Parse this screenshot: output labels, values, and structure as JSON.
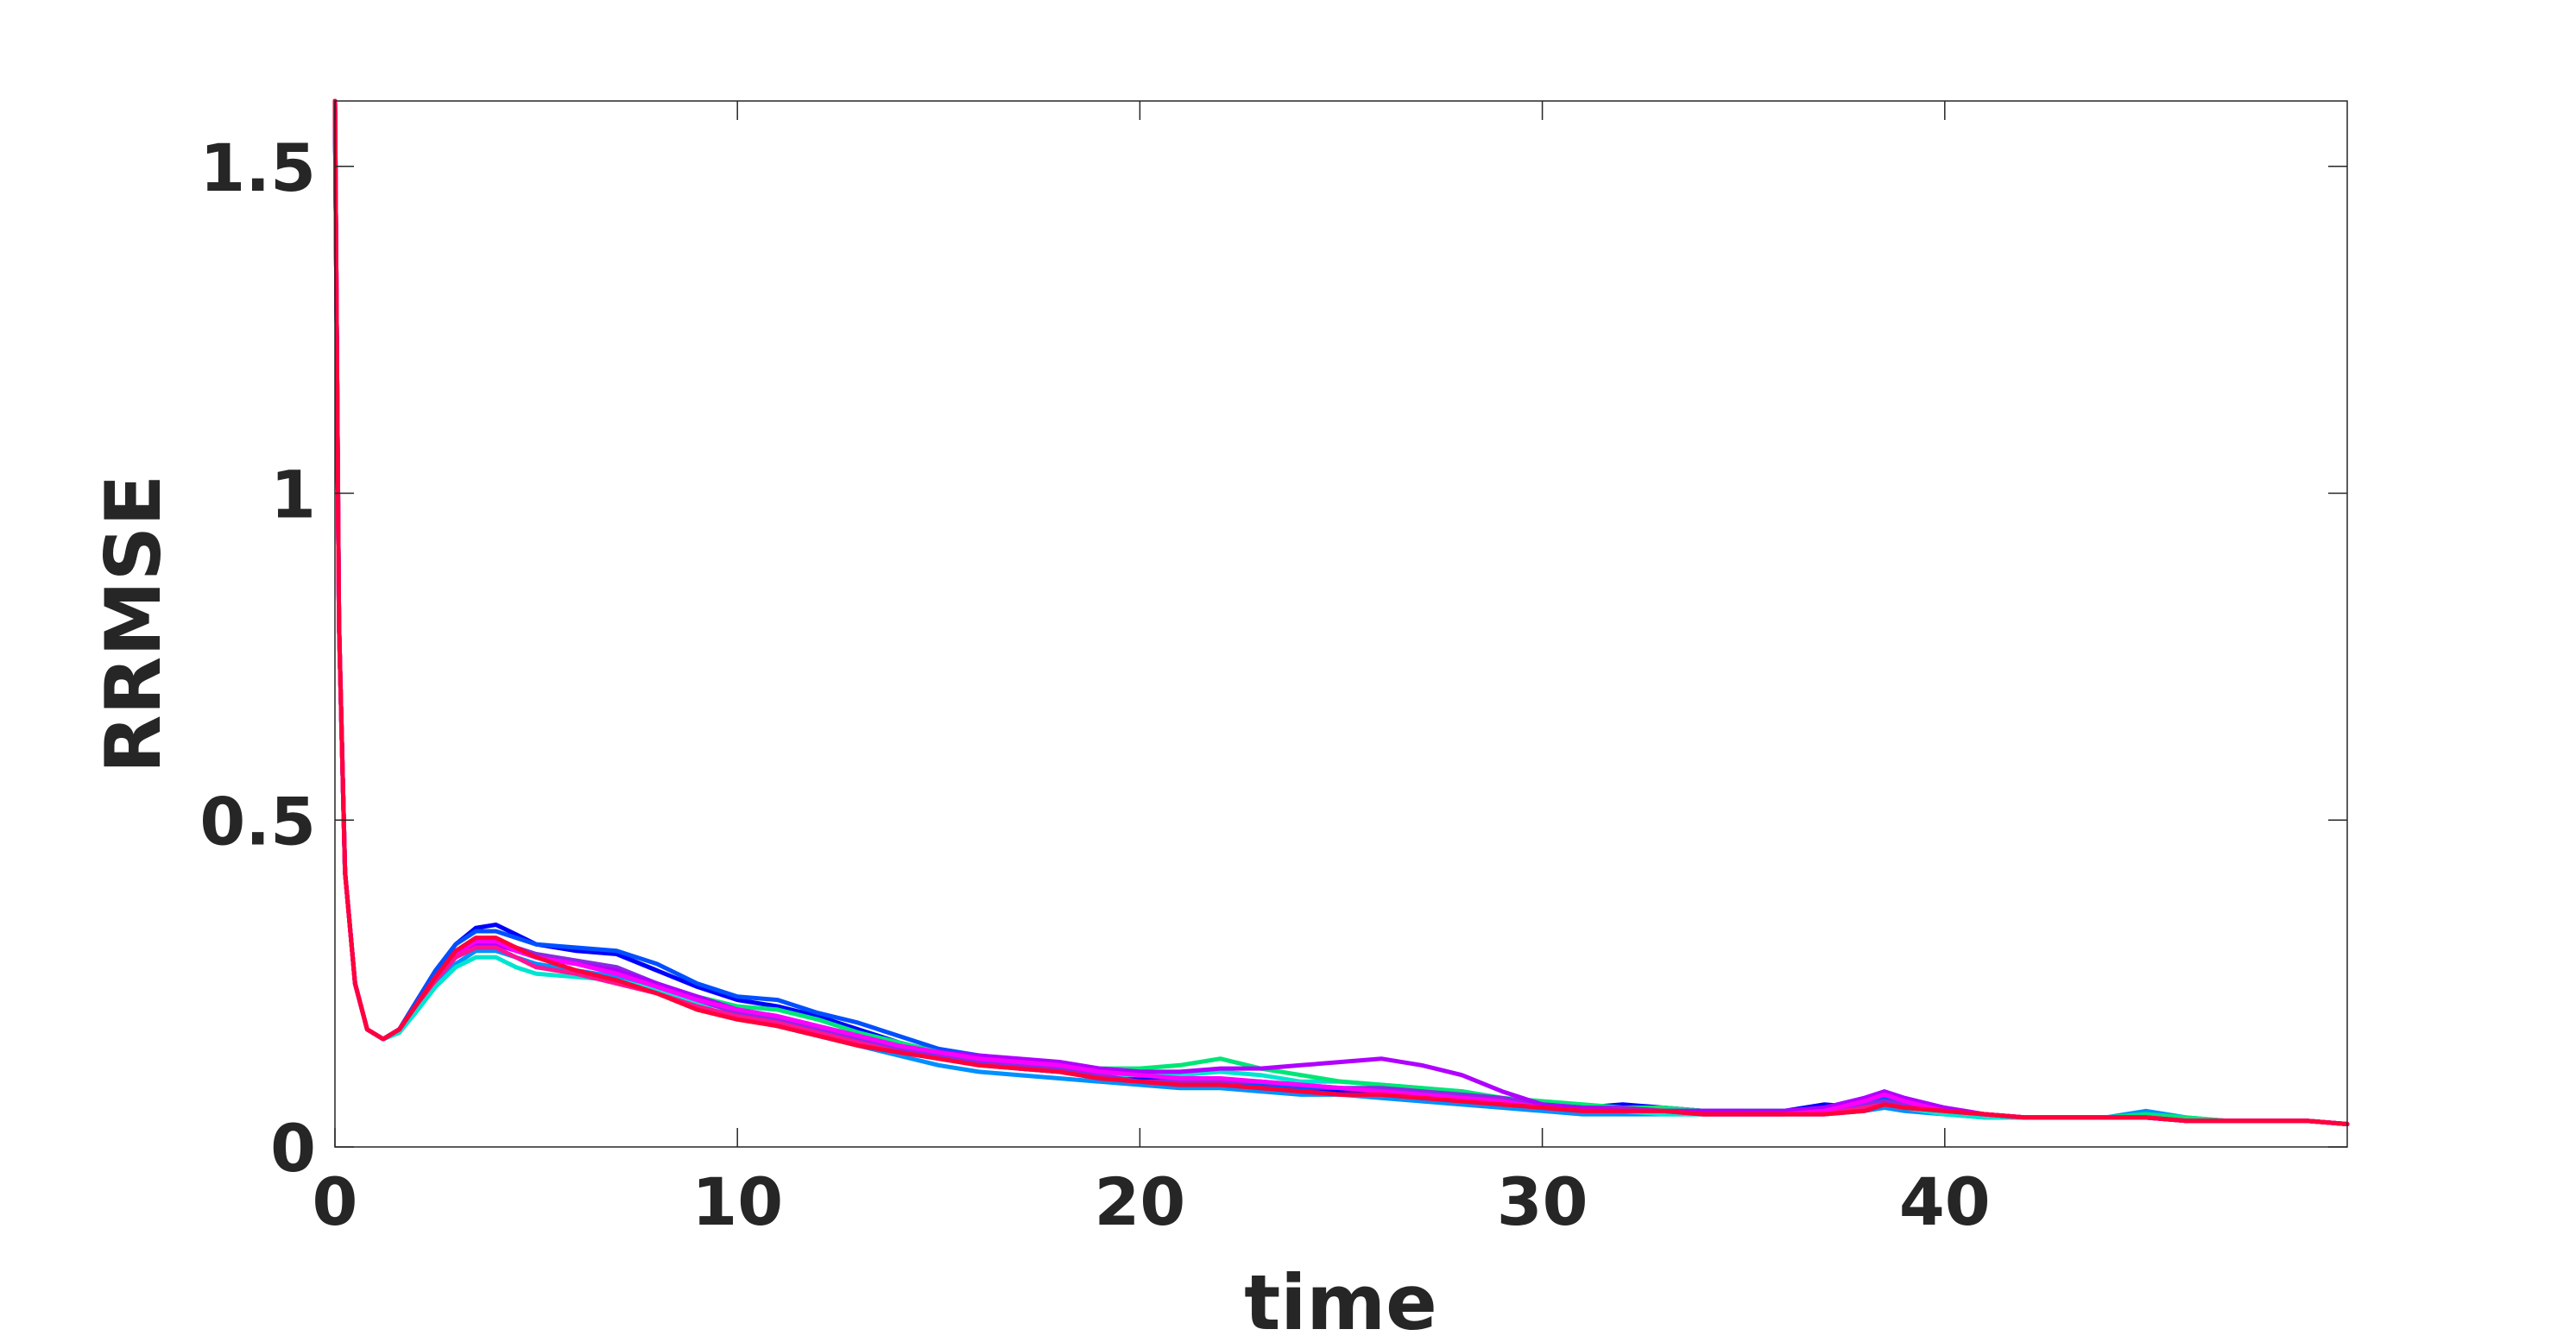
{
  "chart_data": {
    "type": "line",
    "xlabel": "time",
    "ylabel": "RRMSE",
    "xlim": [
      0,
      50
    ],
    "ylim": [
      0,
      1.6
    ],
    "xticks": [
      0,
      10,
      20,
      30,
      40
    ],
    "xtick_labels": [
      "0",
      "10",
      "20",
      "30",
      "40"
    ],
    "yticks": [
      0,
      0.5,
      1,
      1.5
    ],
    "ytick_labels": [
      "0",
      "0.5",
      "1",
      "1.5"
    ],
    "grid": false,
    "legend": "none",
    "x": [
      0,
      0.1,
      0.25,
      0.5,
      0.8,
      1.2,
      1.6,
      2,
      2.5,
      3,
      3.5,
      4,
      4.5,
      5,
      6,
      7,
      8,
      9,
      10,
      11,
      12,
      13,
      14,
      15,
      16,
      17,
      18,
      19,
      20,
      21,
      22,
      23,
      24,
      25,
      26,
      27,
      28,
      29,
      30,
      31,
      32,
      33,
      34,
      35,
      36,
      37,
      38,
      38.5,
      39,
      40,
      41,
      42,
      43,
      44,
      45,
      46,
      47,
      48,
      49,
      50
    ],
    "series": [
      {
        "color": "#0000ff",
        "values": [
          1.6,
          0.8,
          0.42,
          0.25,
          0.18,
          0.165,
          0.18,
          0.22,
          0.27,
          0.31,
          0.335,
          0.34,
          0.325,
          0.31,
          0.3,
          0.295,
          0.27,
          0.245,
          0.225,
          0.215,
          0.2,
          0.18,
          0.16,
          0.145,
          0.13,
          0.12,
          0.115,
          0.11,
          0.105,
          0.1,
          0.1,
          0.095,
          0.09,
          0.085,
          0.085,
          0.08,
          0.075,
          0.07,
          0.065,
          0.06,
          0.065,
          0.06,
          0.055,
          0.055,
          0.055,
          0.065,
          0.06,
          0.065,
          0.06,
          0.055,
          0.05,
          0.045,
          0.045,
          0.045,
          0.045,
          0.04,
          0.04,
          0.04,
          0.04,
          0.035
        ]
      },
      {
        "color": "#0050ff",
        "values": [
          1.6,
          0.8,
          0.42,
          0.25,
          0.18,
          0.165,
          0.18,
          0.22,
          0.27,
          0.31,
          0.33,
          0.33,
          0.32,
          0.31,
          0.305,
          0.3,
          0.28,
          0.25,
          0.23,
          0.225,
          0.205,
          0.19,
          0.17,
          0.15,
          0.14,
          0.13,
          0.12,
          0.115,
          0.11,
          0.105,
          0.1,
          0.095,
          0.09,
          0.09,
          0.085,
          0.08,
          0.075,
          0.07,
          0.065,
          0.06,
          0.06,
          0.06,
          0.055,
          0.055,
          0.055,
          0.06,
          0.07,
          0.075,
          0.065,
          0.055,
          0.05,
          0.045,
          0.045,
          0.045,
          0.05,
          0.04,
          0.04,
          0.04,
          0.04,
          0.035
        ]
      },
      {
        "color": "#0090ff",
        "values": [
          1.6,
          0.8,
          0.42,
          0.25,
          0.18,
          0.165,
          0.175,
          0.21,
          0.25,
          0.28,
          0.3,
          0.3,
          0.29,
          0.28,
          0.27,
          0.26,
          0.24,
          0.215,
          0.2,
          0.185,
          0.17,
          0.155,
          0.14,
          0.125,
          0.115,
          0.11,
          0.105,
          0.1,
          0.095,
          0.09,
          0.09,
          0.085,
          0.08,
          0.08,
          0.075,
          0.07,
          0.065,
          0.06,
          0.055,
          0.05,
          0.05,
          0.05,
          0.05,
          0.05,
          0.05,
          0.05,
          0.055,
          0.06,
          0.055,
          0.05,
          0.045,
          0.045,
          0.045,
          0.045,
          0.055,
          0.045,
          0.04,
          0.04,
          0.04,
          0.035
        ]
      },
      {
        "color": "#00e5d0",
        "values": [
          1.6,
          0.8,
          0.42,
          0.25,
          0.18,
          0.165,
          0.175,
          0.205,
          0.245,
          0.275,
          0.29,
          0.29,
          0.275,
          0.265,
          0.26,
          0.255,
          0.24,
          0.22,
          0.21,
          0.2,
          0.185,
          0.17,
          0.155,
          0.14,
          0.13,
          0.12,
          0.115,
          0.11,
          0.11,
          0.11,
          0.115,
          0.11,
          0.1,
          0.1,
          0.095,
          0.09,
          0.085,
          0.075,
          0.065,
          0.06,
          0.055,
          0.05,
          0.05,
          0.05,
          0.05,
          0.055,
          0.06,
          0.065,
          0.06,
          0.05,
          0.045,
          0.045,
          0.045,
          0.045,
          0.05,
          0.045,
          0.04,
          0.04,
          0.04,
          0.035
        ]
      },
      {
        "color": "#00e676",
        "values": [
          1.6,
          0.8,
          0.42,
          0.25,
          0.18,
          0.165,
          0.18,
          0.215,
          0.26,
          0.29,
          0.31,
          0.31,
          0.3,
          0.29,
          0.28,
          0.27,
          0.25,
          0.23,
          0.215,
          0.21,
          0.195,
          0.175,
          0.16,
          0.145,
          0.135,
          0.13,
          0.125,
          0.12,
          0.12,
          0.125,
          0.135,
          0.12,
          0.11,
          0.1,
          0.095,
          0.09,
          0.085,
          0.075,
          0.07,
          0.065,
          0.06,
          0.06,
          0.055,
          0.055,
          0.055,
          0.055,
          0.06,
          0.065,
          0.06,
          0.055,
          0.05,
          0.045,
          0.045,
          0.045,
          0.05,
          0.045,
          0.04,
          0.04,
          0.04,
          0.035
        ]
      },
      {
        "color": "#8a2be2",
        "values": [
          1.6,
          0.8,
          0.42,
          0.25,
          0.18,
          0.165,
          0.18,
          0.215,
          0.26,
          0.295,
          0.315,
          0.315,
          0.305,
          0.295,
          0.285,
          0.275,
          0.25,
          0.225,
          0.205,
          0.195,
          0.18,
          0.165,
          0.15,
          0.14,
          0.13,
          0.125,
          0.12,
          0.11,
          0.1,
          0.1,
          0.1,
          0.1,
          0.095,
          0.09,
          0.09,
          0.085,
          0.08,
          0.075,
          0.065,
          0.06,
          0.06,
          0.055,
          0.055,
          0.055,
          0.05,
          0.055,
          0.065,
          0.07,
          0.065,
          0.055,
          0.05,
          0.045,
          0.045,
          0.045,
          0.045,
          0.04,
          0.04,
          0.04,
          0.04,
          0.035
        ]
      },
      {
        "color": "#b000ff",
        "values": [
          1.6,
          0.8,
          0.42,
          0.25,
          0.18,
          0.165,
          0.18,
          0.215,
          0.26,
          0.295,
          0.31,
          0.31,
          0.3,
          0.29,
          0.28,
          0.27,
          0.25,
          0.23,
          0.21,
          0.2,
          0.185,
          0.17,
          0.155,
          0.145,
          0.14,
          0.135,
          0.13,
          0.12,
          0.115,
          0.115,
          0.12,
          0.12,
          0.125,
          0.13,
          0.135,
          0.125,
          0.11,
          0.085,
          0.065,
          0.06,
          0.055,
          0.055,
          0.055,
          0.055,
          0.055,
          0.06,
          0.075,
          0.085,
          0.075,
          0.06,
          0.05,
          0.045,
          0.045,
          0.045,
          0.045,
          0.04,
          0.04,
          0.04,
          0.04,
          0.035
        ]
      },
      {
        "color": "#ff00ff",
        "values": [
          1.6,
          0.8,
          0.42,
          0.25,
          0.18,
          0.165,
          0.18,
          0.215,
          0.26,
          0.295,
          0.315,
          0.315,
          0.3,
          0.29,
          0.28,
          0.265,
          0.245,
          0.225,
          0.21,
          0.2,
          0.185,
          0.17,
          0.155,
          0.145,
          0.135,
          0.13,
          0.125,
          0.115,
          0.11,
          0.105,
          0.105,
          0.1,
          0.095,
          0.09,
          0.085,
          0.08,
          0.075,
          0.07,
          0.06,
          0.055,
          0.055,
          0.055,
          0.05,
          0.05,
          0.05,
          0.055,
          0.07,
          0.08,
          0.07,
          0.055,
          0.05,
          0.045,
          0.045,
          0.045,
          0.045,
          0.04,
          0.04,
          0.04,
          0.04,
          0.035
        ]
      },
      {
        "color": "#ff1493",
        "values": [
          1.6,
          0.8,
          0.42,
          0.25,
          0.18,
          0.165,
          0.18,
          0.215,
          0.255,
          0.29,
          0.305,
          0.305,
          0.29,
          0.275,
          0.265,
          0.25,
          0.235,
          0.215,
          0.2,
          0.19,
          0.175,
          0.16,
          0.145,
          0.135,
          0.125,
          0.12,
          0.115,
          0.105,
          0.1,
          0.095,
          0.095,
          0.09,
          0.085,
          0.08,
          0.08,
          0.075,
          0.07,
          0.065,
          0.06,
          0.055,
          0.055,
          0.055,
          0.05,
          0.05,
          0.05,
          0.05,
          0.06,
          0.065,
          0.06,
          0.055,
          0.05,
          0.045,
          0.045,
          0.045,
          0.045,
          0.04,
          0.04,
          0.04,
          0.04,
          0.035
        ]
      },
      {
        "color": "#ff003c",
        "values": [
          1.6,
          0.8,
          0.42,
          0.25,
          0.18,
          0.165,
          0.18,
          0.215,
          0.26,
          0.3,
          0.32,
          0.32,
          0.305,
          0.29,
          0.27,
          0.255,
          0.235,
          0.21,
          0.195,
          0.185,
          0.17,
          0.155,
          0.145,
          0.135,
          0.125,
          0.12,
          0.115,
          0.105,
          0.1,
          0.095,
          0.095,
          0.09,
          0.085,
          0.08,
          0.08,
          0.075,
          0.07,
          0.065,
          0.06,
          0.055,
          0.055,
          0.055,
          0.05,
          0.05,
          0.05,
          0.05,
          0.055,
          0.065,
          0.06,
          0.055,
          0.05,
          0.045,
          0.045,
          0.045,
          0.045,
          0.04,
          0.04,
          0.04,
          0.04,
          0.035
        ]
      }
    ]
  }
}
